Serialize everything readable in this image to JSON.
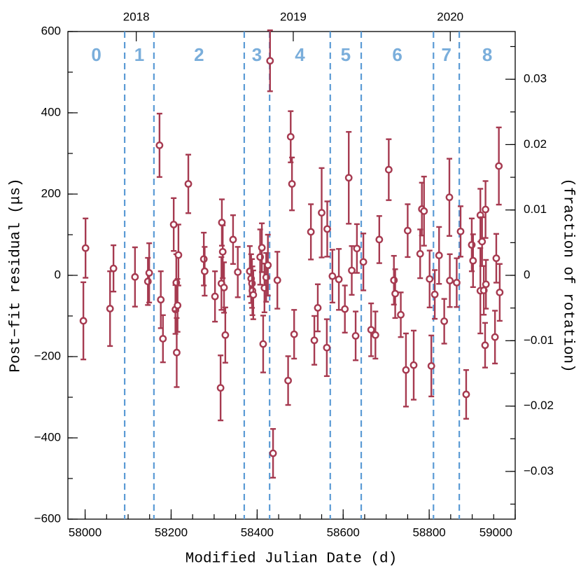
{
  "chart_data": {
    "type": "scatter",
    "xlabel": "Modified Julian Date (d)",
    "ylabel": "Post−fit residual (μs)",
    "y2label": "(fraction of rotation)",
    "color": "#a63a50",
    "vline_color": "#5b9bd5",
    "segment_color": "#7aaedb",
    "xlim": [
      57960,
      59000
    ],
    "xticks": [
      58000,
      58200,
      58400,
      58600,
      58800,
      59000
    ],
    "ylim": [
      -600,
      600
    ],
    "yticks": [
      {
        "value": -600,
        "label": "−600"
      },
      {
        "value": -400,
        "label": "−400"
      },
      {
        "value": -200,
        "label": "−200"
      },
      0,
      200,
      400,
      600
    ],
    "y2lim": [
      -0.0373,
      0.0373
    ],
    "y2ticks": [
      {
        "value": -0.03,
        "label": "−0.03"
      },
      {
        "value": -0.02,
        "label": "−0.02"
      },
      {
        "value": -0.01,
        "label": "−0.01"
      },
      0,
      0.01,
      0.02,
      0.03
    ],
    "top_ticks": [
      {
        "value": 58119,
        "label": "2018"
      },
      {
        "value": 58484,
        "label": "2019"
      },
      {
        "value": 58849,
        "label": "2020"
      }
    ],
    "vlines": [
      58092,
      58160,
      58370,
      58429,
      58570,
      58642,
      58810,
      58870
    ],
    "segment_labels": [
      "0",
      "1",
      "2",
      "3",
      "4",
      "5",
      "6",
      "7",
      "8"
    ],
    "x": [
      57996,
      58001,
      58058,
      58066,
      58116,
      58146,
      58149,
      58173,
      58176,
      58181,
      58206,
      58210,
      58212,
      58213,
      58215,
      58217,
      58240,
      58276,
      58278,
      58302,
      58315,
      58317,
      58318,
      58320,
      58323,
      58326,
      58344,
      58355,
      58383,
      58386,
      58388,
      58389,
      58391,
      58407,
      58411,
      58414,
      58417,
      58421,
      58425,
      58430,
      58437,
      58447,
      58472,
      58478,
      58481,
      58486,
      58525,
      58533,
      58541,
      58550,
      58562,
      58563,
      58575,
      58590,
      58604,
      58613,
      58620,
      58629,
      58632,
      58647,
      58665,
      58675,
      58684,
      58706,
      58718,
      58721,
      58734,
      58746,
      58750,
      58764,
      58779,
      58783,
      58788,
      58801,
      58805,
      58813,
      58823,
      58835,
      58847,
      58848,
      58864,
      58873,
      58886,
      58899,
      58902,
      58919,
      58919,
      58923,
      58927,
      58930,
      58931,
      58932,
      58953,
      58956,
      58962,
      58964
    ],
    "values": [
      -112,
      67,
      -82,
      17,
      -4,
      -15,
      6,
      320,
      -60,
      -156,
      125,
      -84,
      -18,
      -190,
      -74,
      50,
      225,
      40,
      10,
      -52,
      -277,
      -20,
      130,
      58,
      -30,
      -147,
      88,
      8,
      10,
      -8,
      -20,
      -38,
      -48,
      45,
      68,
      -169,
      -31,
      -5,
      25,
      528,
      -438,
      -12,
      -259,
      341,
      225,
      -145,
      107,
      -160,
      -80,
      154,
      -178,
      114,
      -2,
      -10,
      -83,
      240,
      12,
      -149,
      66,
      33,
      -134,
      -147,
      88,
      260,
      -12,
      -45,
      -97,
      -233,
      110,
      -221,
      53,
      163,
      158,
      -9,
      -223,
      -47,
      49,
      -113,
      192,
      -13,
      -18,
      108,
      -293,
      75,
      36,
      -38,
      148,
      83,
      -37,
      -172,
      162,
      -22,
      -152,
      42,
      269,
      -42
    ],
    "errors": [
      95,
      73,
      92,
      57,
      73,
      58,
      73,
      78,
      70,
      58,
      65,
      60,
      70,
      85,
      65,
      75,
      72,
      65,
      60,
      62,
      80,
      65,
      57,
      65,
      62,
      68,
      60,
      62,
      62,
      60,
      60,
      60,
      60,
      68,
      60,
      70,
      60,
      60,
      75,
      75,
      60,
      70,
      60,
      63,
      65,
      60,
      68,
      60,
      58,
      110,
      70,
      68,
      65,
      75,
      58,
      113,
      60,
      60,
      60,
      70,
      65,
      58,
      58,
      75,
      60,
      60,
      55,
      90,
      65,
      85,
      60,
      65,
      85,
      70,
      75,
      60,
      70,
      55,
      95,
      65,
      60,
      62,
      60,
      65,
      65,
      105,
      65,
      60,
      60,
      55,
      70,
      60,
      65,
      60,
      95,
      70
    ]
  }
}
